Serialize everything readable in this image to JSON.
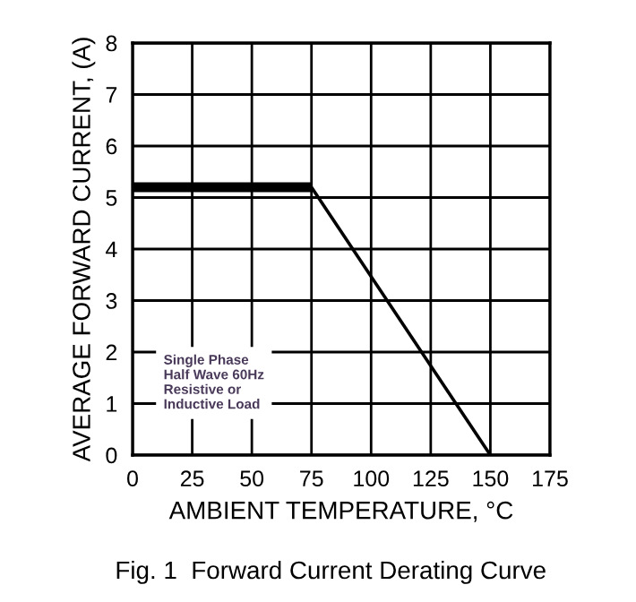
{
  "chart_data": {
    "type": "line",
    "title": "Fig. 1  Forward Current Derating Curve",
    "xlabel": "AMBIENT TEMPERATURE, °C",
    "ylabel": "AVERAGE FORWARD CURRENT, (A)",
    "series": [
      {
        "color": "#000000",
        "x": [
          0,
          75
        ],
        "values": [
          5.2,
          5.2
        ]
      },
      {
        "color": "#000000",
        "x": [
          75,
          150
        ],
        "values": [
          5.2,
          0
        ]
      }
    ],
    "xlim": [
      0,
      175
    ],
    "xticks": [
      0,
      25,
      50,
      75,
      100,
      125,
      150,
      175
    ],
    "ylim": [
      0,
      8
    ],
    "yticks": [
      0,
      1,
      2,
      3,
      4,
      5,
      6,
      7,
      8
    ],
    "grid": true,
    "marker": "none",
    "line_style": "solid",
    "annotations": [
      "Single Phase\nHalf Wave 60Hz\nResistive or\nInductive Load"
    ]
  }
}
